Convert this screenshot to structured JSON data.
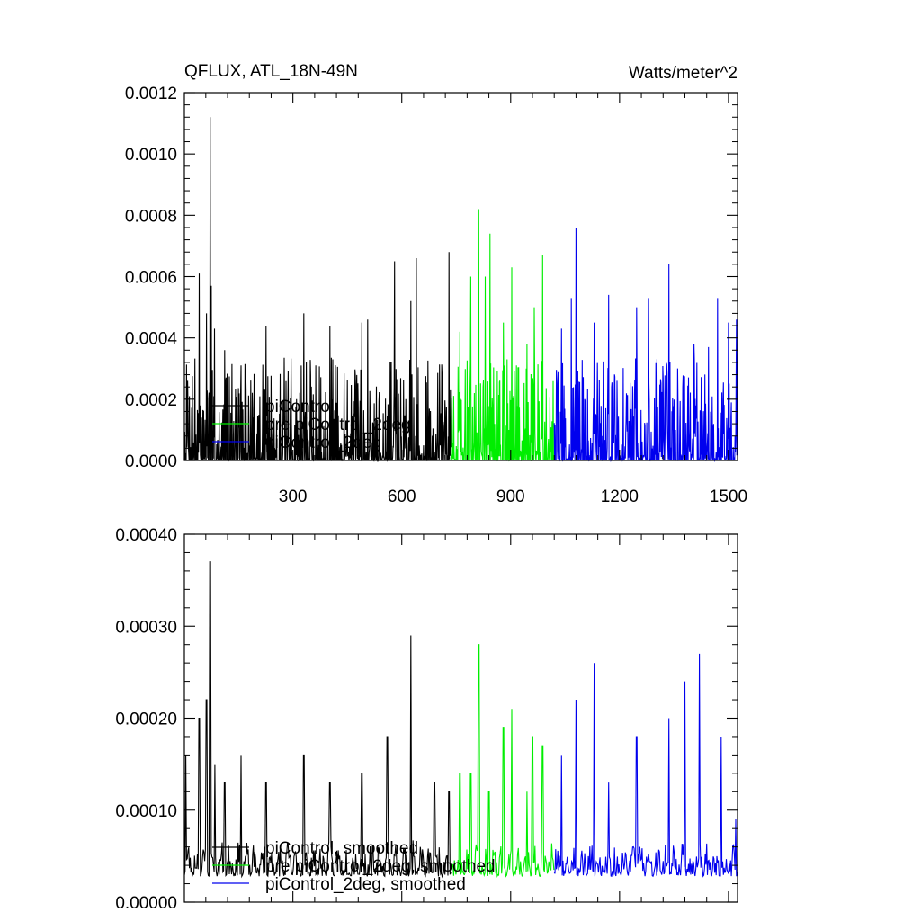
{
  "header": {
    "title": "QFLUX, ATL_18N-49N",
    "units": "Watts/meter^2"
  },
  "colors": {
    "piControl": "#000000",
    "pre_piControl_2deg": "#00ee00",
    "piControl_2deg": "#0000ee",
    "axis": "#000000"
  },
  "chart_data": [
    {
      "type": "line",
      "xlim": [
        1,
        1525
      ],
      "ylim": [
        0,
        0.0012
      ],
      "xticks": [
        "300",
        "600",
        "900",
        "1200",
        "1500"
      ],
      "xtick_values": [
        300,
        600,
        900,
        1200,
        1500
      ],
      "yticks": [
        "0.0000",
        "0.0002",
        "0.0004",
        "0.0006",
        "0.0008",
        "0.0010",
        "0.0012"
      ],
      "ytick_values": [
        0,
        0.0002,
        0.0004,
        0.0006,
        0.0008,
        0.001,
        0.0012
      ],
      "legend_position": "lower-left",
      "series": [
        {
          "name": "piControl",
          "color": "#000000",
          "x_range": [
            1,
            735
          ],
          "peaks": [
            [
              10,
              0.00026
            ],
            [
              42,
              0.00061
            ],
            [
              62,
              0.00048
            ],
            [
              72,
              0.00112
            ],
            [
              75,
              0.00057
            ],
            [
              84,
              0.00043
            ],
            [
              112,
              0.00036
            ],
            [
              157,
              0.00031
            ],
            [
              170,
              0.0003
            ],
            [
              226,
              0.00044
            ],
            [
              330,
              0.00048
            ],
            [
              402,
              0.00044
            ],
            [
              490,
              0.00045
            ],
            [
              506,
              0.00046
            ],
            [
              580,
              0.00065
            ],
            [
              625,
              0.00052
            ],
            [
              640,
              0.00066
            ],
            [
              730,
              0.00068
            ]
          ]
        },
        {
          "name": "pre piControl_2deg",
          "color": "#00ee00",
          "x_range": [
            735,
            1020
          ],
          "peaks": [
            [
              760,
              0.00042
            ],
            [
              790,
              0.0006
            ],
            [
              812,
              0.00082
            ],
            [
              830,
              0.0006
            ],
            [
              843,
              0.00074
            ],
            [
              880,
              0.00045
            ],
            [
              903,
              0.00063
            ],
            [
              945,
              0.00038
            ],
            [
              965,
              0.0005
            ],
            [
              988,
              0.00067
            ]
          ]
        },
        {
          "name": "piControl_2deg",
          "color": "#0000ee",
          "x_range": [
            1020,
            1525
          ],
          "peaks": [
            [
              1040,
              0.00043
            ],
            [
              1067,
              0.00053
            ],
            [
              1080,
              0.00076
            ],
            [
              1130,
              0.00045
            ],
            [
              1170,
              0.00054
            ],
            [
              1247,
              0.0005
            ],
            [
              1280,
              0.00053
            ],
            [
              1336,
              0.00064
            ],
            [
              1405,
              0.00038
            ],
            [
              1445,
              0.00037
            ],
            [
              1470,
              0.00053
            ],
            [
              1500,
              0.00045
            ],
            [
              1522,
              0.00046
            ]
          ]
        }
      ]
    },
    {
      "type": "line",
      "xlim": [
        1,
        1525
      ],
      "ylim": [
        0,
        0.0004
      ],
      "xticks": [],
      "xtick_values": [
        300,
        600,
        900,
        1200,
        1500
      ],
      "yticks": [
        "0.00000",
        "0.00010",
        "0.00020",
        "0.00030",
        "0.00040"
      ],
      "ytick_values": [
        0,
        0.0001,
        0.0002,
        0.0003,
        0.0004
      ],
      "legend_position": "lower-left",
      "series": [
        {
          "name": "piControl, smoothed",
          "color": "#000000",
          "x_range": [
            1,
            735
          ],
          "peaks": [
            [
              5,
              0.00016
            ],
            [
              42,
              0.0002
            ],
            [
              62,
              0.00022
            ],
            [
              72,
              0.00037
            ],
            [
              85,
              0.00015
            ],
            [
              112,
              0.00013
            ],
            [
              157,
              0.00016
            ],
            [
              226,
              0.00013
            ],
            [
              330,
              0.00016
            ],
            [
              402,
              0.00013
            ],
            [
              490,
              0.00014
            ],
            [
              560,
              0.00018
            ],
            [
              625,
              0.00029
            ],
            [
              690,
              0.00013
            ],
            [
              730,
              0.00012
            ]
          ]
        },
        {
          "name": "pre piControl_2deg, smoothed",
          "color": "#00ee00",
          "x_range": [
            735,
            1020
          ],
          "peaks": [
            [
              760,
              0.00014
            ],
            [
              790,
              0.00014
            ],
            [
              812,
              0.00028
            ],
            [
              840,
              0.00012
            ],
            [
              880,
              0.00019
            ],
            [
              903,
              0.00021
            ],
            [
              945,
              0.00012
            ],
            [
              960,
              0.00018
            ],
            [
              988,
              0.00017
            ]
          ]
        },
        {
          "name": "piControl_2deg, smoothed",
          "color": "#0000ee",
          "x_range": [
            1020,
            1525
          ],
          "peaks": [
            [
              1040,
              0.00016
            ],
            [
              1080,
              0.00022
            ],
            [
              1130,
              0.00026
            ],
            [
              1170,
              0.00013
            ],
            [
              1247,
              0.00018
            ],
            [
              1336,
              0.0002
            ],
            [
              1380,
              0.00024
            ],
            [
              1420,
              0.00027
            ],
            [
              1480,
              0.00018
            ],
            [
              1520,
              9e-05
            ]
          ]
        }
      ]
    }
  ]
}
